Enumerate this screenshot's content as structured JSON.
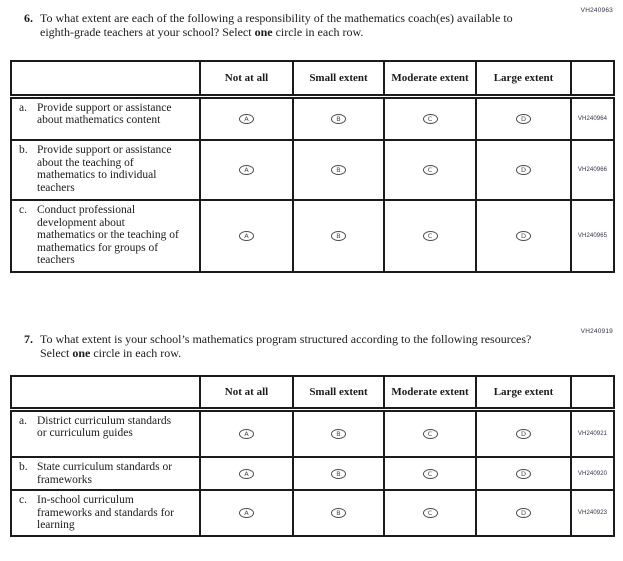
{
  "questions": [
    {
      "code": "VH240963",
      "number": "6.",
      "text_before": "To what extent are each of the following a responsibility of the mathematics coach(es) available to eighth-grade teachers at your school? Select ",
      "text_bold": "one",
      "text_after": " circle in each row.",
      "columns": [
        "Not at all",
        "Small extent",
        "Moderate extent",
        "Large extent"
      ],
      "options": [
        "A",
        "B",
        "C",
        "D"
      ],
      "rows": [
        {
          "letter": "a.",
          "label": "Provide support or assistance about mathematics content",
          "code": "VH240964"
        },
        {
          "letter": "b.",
          "label": "Provide support or assistance about the teaching of mathematics to individual teachers",
          "code": "VH240966"
        },
        {
          "letter": "c.",
          "label": "Conduct professional development about mathematics or the teaching of mathematics for groups of teachers",
          "code": "VH240965"
        }
      ]
    },
    {
      "code": "VH240919",
      "number": "7.",
      "text_before": "To what extent is your school’s mathematics program structured according to the following resources? Select ",
      "text_bold": "one",
      "text_after": " circle in each row.",
      "columns": [
        "Not at all",
        "Small extent",
        "Moderate extent",
        "Large extent"
      ],
      "options": [
        "A",
        "B",
        "C",
        "D"
      ],
      "rows": [
        {
          "letter": "a.",
          "label": "District curriculum standards or curriculum guides",
          "code": "VH240921"
        },
        {
          "letter": "b.",
          "label": "State curriculum standards or frameworks",
          "code": "VH240920"
        },
        {
          "letter": "c.",
          "label": "In-school curriculum frameworks and standards for learning",
          "code": "VH240923"
        }
      ]
    }
  ]
}
